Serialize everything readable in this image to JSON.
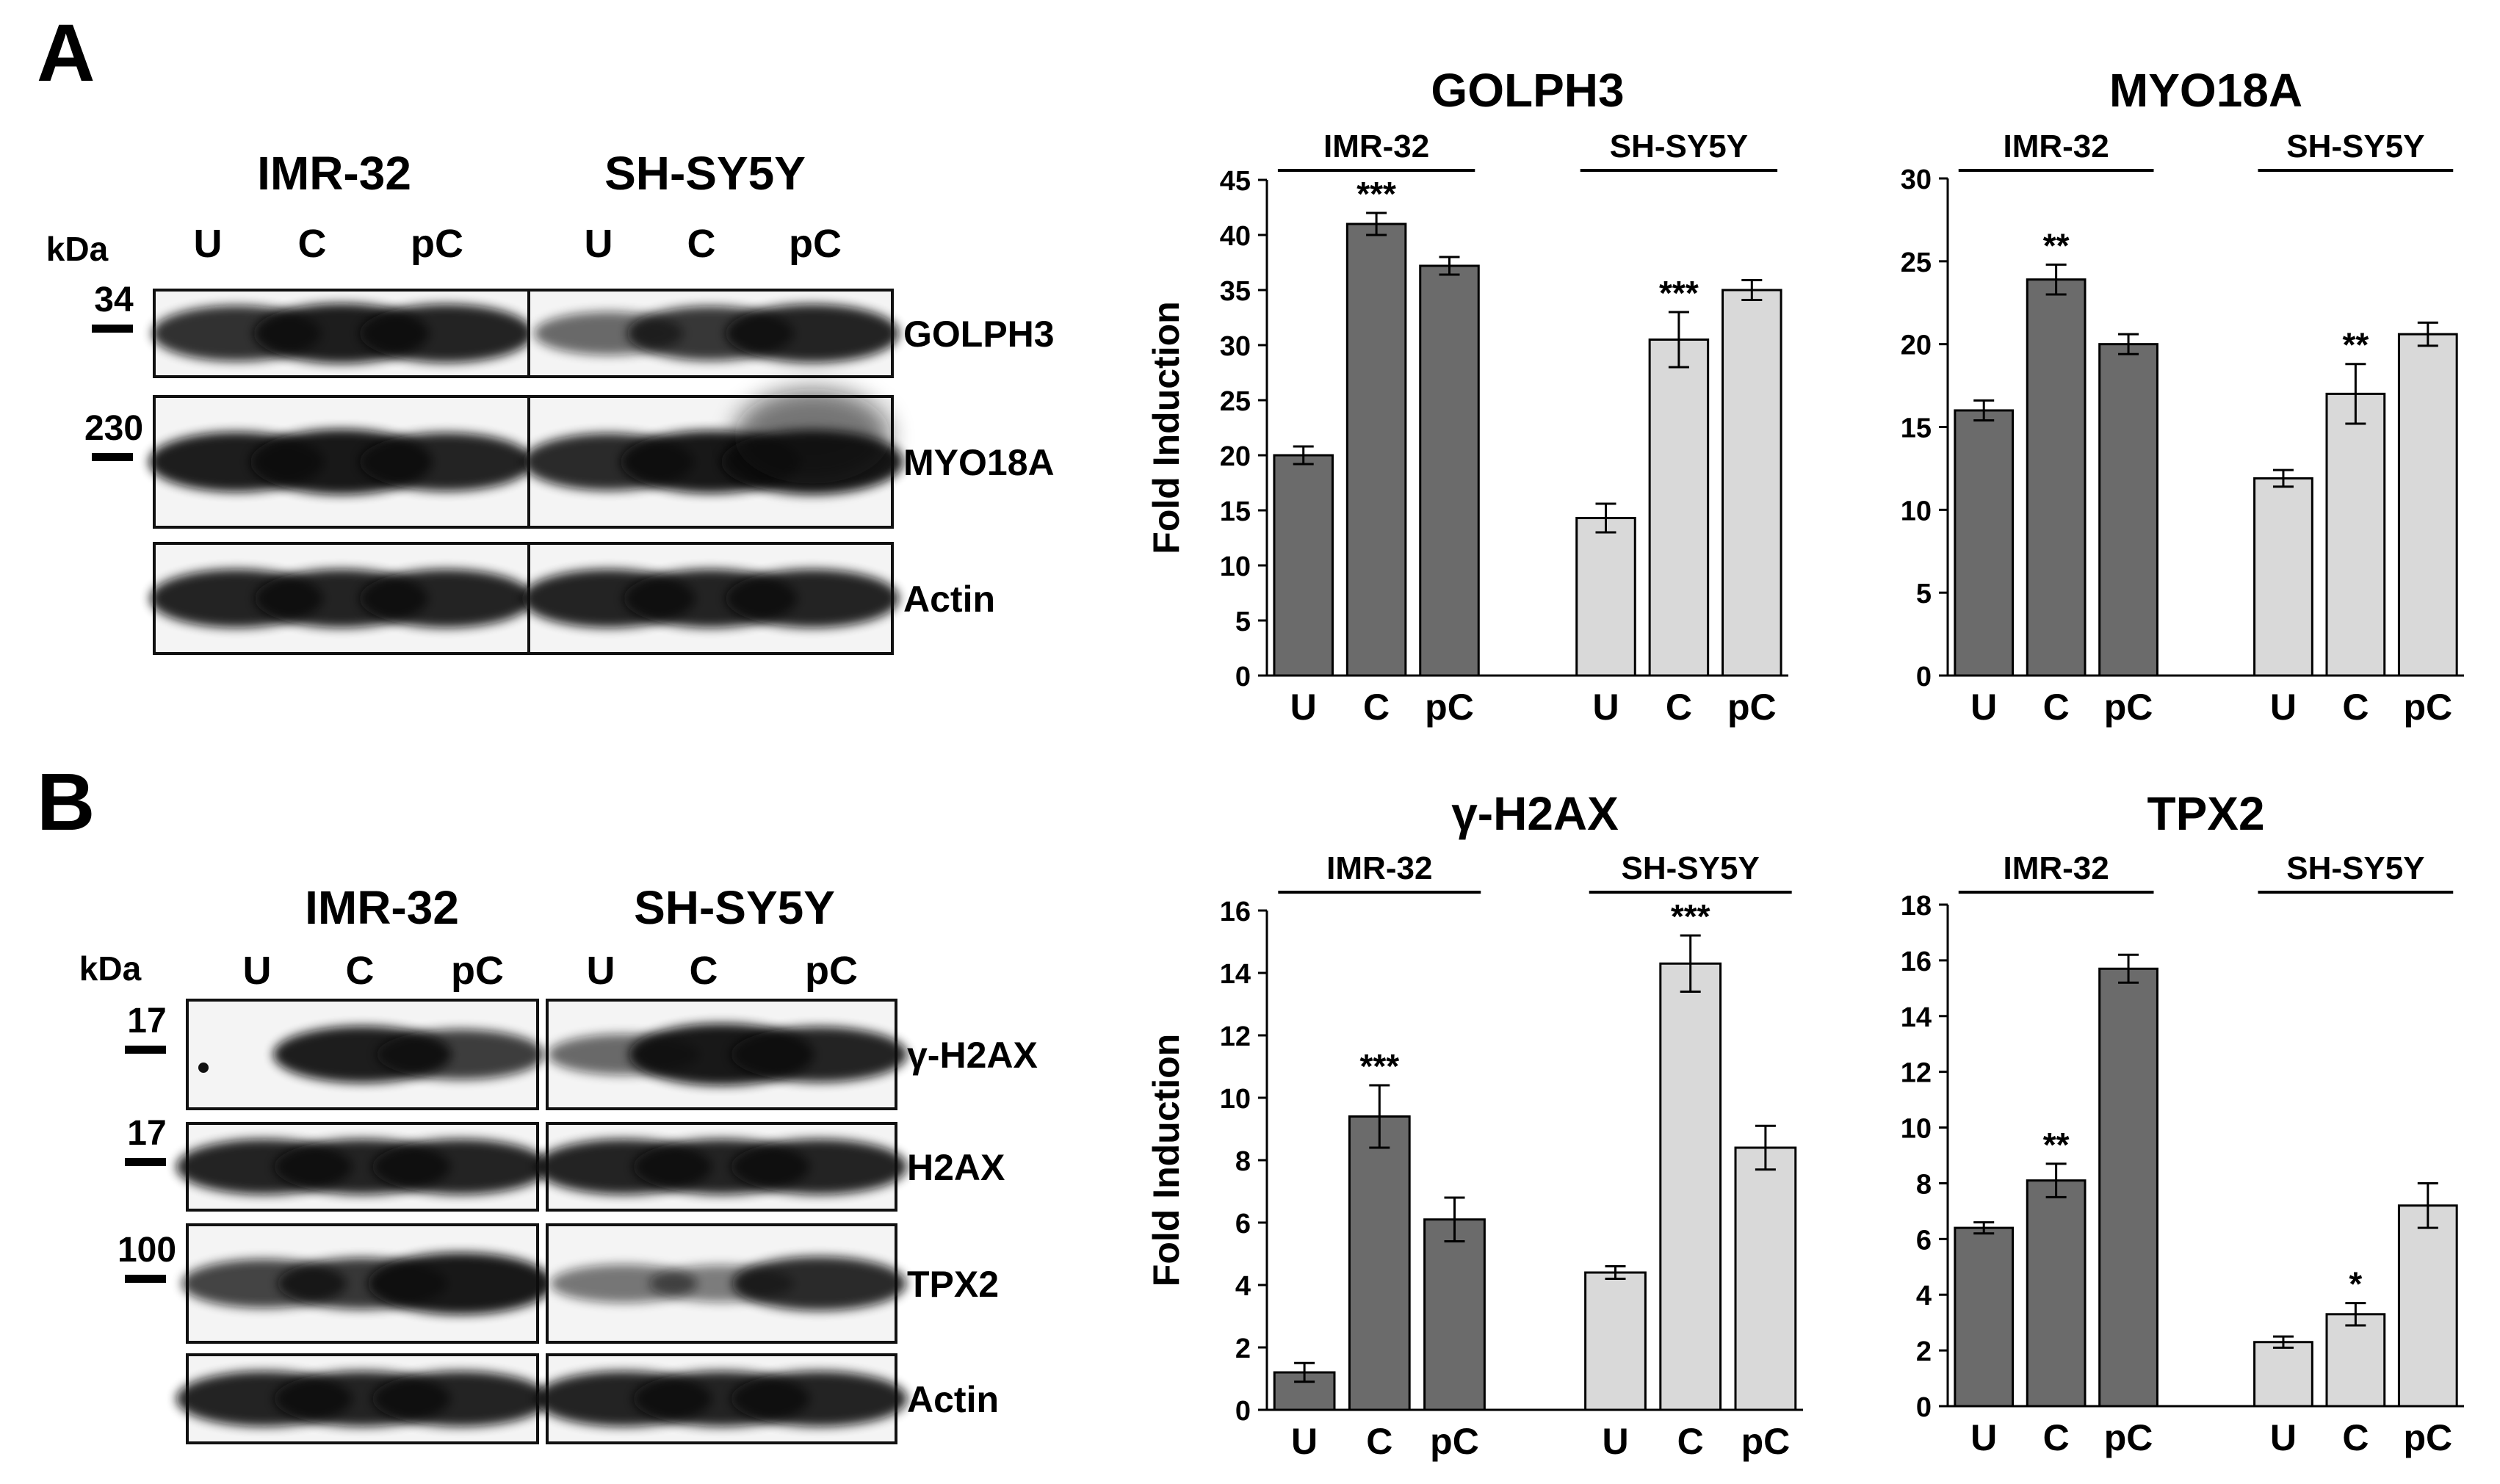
{
  "panels": [
    {
      "label": "A",
      "blot": {
        "cell_lines": [
          "IMR-32",
          "SH-SY5Y"
        ],
        "lanes": [
          "U",
          "C",
          "pC"
        ],
        "kda_header": "kDa",
        "rows": [
          {
            "name": "GOLPH3",
            "kda": "34"
          },
          {
            "name": "MYO18A",
            "kda": "230"
          },
          {
            "name": "Actin",
            "kda": ""
          }
        ]
      }
    },
    {
      "label": "B",
      "blot": {
        "cell_lines": [
          "IMR-32",
          "SH-SY5Y"
        ],
        "lanes": [
          "U",
          "C",
          "pC"
        ],
        "kda_header": "kDa",
        "rows": [
          {
            "name": "γ-H2AX",
            "kda": "17"
          },
          {
            "name": "H2AX",
            "kda": "17"
          },
          {
            "name": "TPX2",
            "kda": "100"
          },
          {
            "name": "Actin",
            "kda": ""
          }
        ]
      }
    }
  ],
  "colors": {
    "dark_bar": "#6b6b6b",
    "light_bar": "#d9d9d9"
  },
  "chart_data": [
    {
      "type": "bar",
      "title": "GOLPH3",
      "ylabel": "Fold Induction",
      "ylim": [
        0,
        45
      ],
      "yticks": [
        0,
        5,
        10,
        15,
        20,
        25,
        30,
        35,
        40,
        45
      ],
      "groups": [
        {
          "name": "IMR-32",
          "categories": [
            "U",
            "C",
            "pC"
          ],
          "values": [
            20,
            41,
            37.2
          ],
          "errors": [
            0.8,
            1.0,
            0.8
          ],
          "significance": [
            "",
            "***",
            ""
          ],
          "color": "#6b6b6b"
        },
        {
          "name": "SH-SY5Y",
          "categories": [
            "U",
            "C",
            "pC"
          ],
          "values": [
            14.3,
            30.5,
            35
          ],
          "errors": [
            1.3,
            2.5,
            0.9
          ],
          "significance": [
            "",
            "***",
            ""
          ],
          "color": "#d9d9d9"
        }
      ]
    },
    {
      "type": "bar",
      "title": "MYO18A",
      "ylabel": "",
      "ylim": [
        0,
        30
      ],
      "yticks": [
        0,
        5,
        10,
        15,
        20,
        25,
        30
      ],
      "groups": [
        {
          "name": "IMR-32",
          "categories": [
            "U",
            "C",
            "pC"
          ],
          "values": [
            16,
            23.9,
            20
          ],
          "errors": [
            0.6,
            0.9,
            0.6
          ],
          "significance": [
            "",
            "**",
            ""
          ],
          "color": "#6b6b6b"
        },
        {
          "name": "SH-SY5Y",
          "categories": [
            "U",
            "C",
            "pC"
          ],
          "values": [
            11.9,
            17,
            20.6
          ],
          "errors": [
            0.5,
            1.8,
            0.7
          ],
          "significance": [
            "",
            "**",
            ""
          ],
          "color": "#d9d9d9"
        }
      ]
    },
    {
      "type": "bar",
      "title": "γ-H2AX",
      "ylabel": "Fold Induction",
      "ylim": [
        0,
        16
      ],
      "yticks": [
        0,
        2,
        4,
        6,
        8,
        10,
        12,
        14,
        16
      ],
      "groups": [
        {
          "name": "IMR-32",
          "categories": [
            "U",
            "C",
            "pC"
          ],
          "values": [
            1.2,
            9.4,
            6.1
          ],
          "errors": [
            0.3,
            1.0,
            0.7
          ],
          "significance": [
            "",
            "***",
            ""
          ],
          "color": "#6b6b6b"
        },
        {
          "name": "SH-SY5Y",
          "categories": [
            "U",
            "C",
            "pC"
          ],
          "values": [
            4.4,
            14.3,
            8.4
          ],
          "errors": [
            0.2,
            0.9,
            0.7
          ],
          "significance": [
            "",
            "***",
            ""
          ],
          "color": "#d9d9d9"
        }
      ]
    },
    {
      "type": "bar",
      "title": "TPX2",
      "ylabel": "",
      "ylim": [
        0,
        18
      ],
      "yticks": [
        0,
        2,
        4,
        6,
        8,
        10,
        12,
        14,
        16,
        18
      ],
      "groups": [
        {
          "name": "IMR-32",
          "categories": [
            "U",
            "C",
            "pC"
          ],
          "values": [
            6.4,
            8.1,
            15.7
          ],
          "errors": [
            0.2,
            0.6,
            0.5
          ],
          "significance": [
            "",
            "**",
            ""
          ],
          "color": "#6b6b6b"
        },
        {
          "name": "SH-SY5Y",
          "categories": [
            "U",
            "C",
            "pC"
          ],
          "values": [
            2.3,
            3.3,
            7.2
          ],
          "errors": [
            0.2,
            0.4,
            0.8
          ],
          "significance": [
            "",
            "*",
            ""
          ],
          "color": "#d9d9d9"
        }
      ]
    }
  ]
}
